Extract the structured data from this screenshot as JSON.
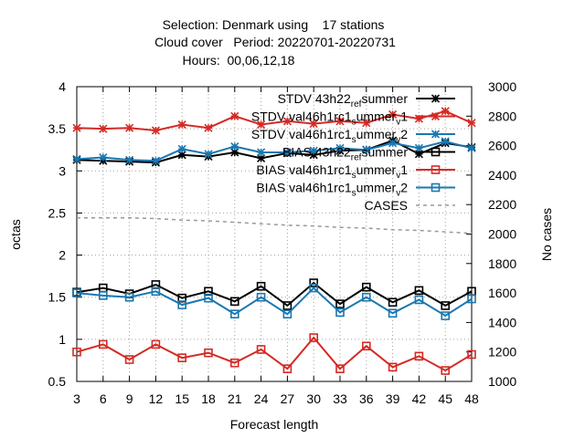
{
  "chart_data": {
    "type": "line",
    "title_lines": [
      "Selection: Denmark using    17 stations",
      "Cloud cover   Period: 20220701-20220731",
      "Hours:  00,06,12,18"
    ],
    "xlabel": "Forecast length",
    "ylabel": "octas",
    "y2label": "No cases",
    "x": [
      3,
      6,
      9,
      12,
      15,
      18,
      21,
      24,
      27,
      30,
      33,
      36,
      39,
      42,
      45,
      48
    ],
    "xlim": [
      3,
      48
    ],
    "ylim": [
      0.5,
      4
    ],
    "y2lim": [
      1000,
      3000
    ],
    "yticks": [
      "0.5",
      "1",
      "1.5",
      "2",
      "2.5",
      "3",
      "3.5",
      "4"
    ],
    "y2ticks": [
      "1000",
      "1200",
      "1400",
      "1600",
      "1800",
      "2000",
      "2200",
      "2400",
      "2600",
      "2800",
      "3000"
    ],
    "xticks": [
      "3",
      "6",
      "9",
      "12",
      "15",
      "18",
      "21",
      "24",
      "27",
      "30",
      "33",
      "36",
      "39",
      "42",
      "45",
      "48"
    ],
    "grid": true,
    "legend_position": "top-right",
    "series": [
      {
        "name": "STDV 43h22_ref_summer",
        "legend_main": "STDV 43h22",
        "legend_sub": "ref",
        "legend_main2": "s",
        "legend_tail": "ummer",
        "color": "#000000",
        "marker": "star",
        "axis": "y",
        "values": [
          3.13,
          3.12,
          3.11,
          3.1,
          3.19,
          3.17,
          3.22,
          3.15,
          3.21,
          3.19,
          3.24,
          3.25,
          3.36,
          3.2,
          3.33,
          3.28
        ]
      },
      {
        "name": "STDV val46h1rc1_summer_v1",
        "legend_main": "STDV val46h1rc1",
        "legend_sub": "s",
        "legend_tail": "ummer",
        "legend_sub2": "v",
        "legend_end": "1",
        "color": "#d42a24",
        "marker": "star",
        "axis": "y",
        "values": [
          3.51,
          3.5,
          3.51,
          3.48,
          3.55,
          3.51,
          3.65,
          3.55,
          3.59,
          3.56,
          3.59,
          3.57,
          3.67,
          3.62,
          3.71,
          3.57
        ]
      },
      {
        "name": "STDV val46h1rc1_summer_v2",
        "legend_main": "STDV val46h1rc1",
        "legend_sub": "s",
        "legend_tail": "ummer",
        "legend_sub2": "v",
        "legend_end": "2",
        "color": "#1a77b0",
        "marker": "star",
        "axis": "y",
        "values": [
          3.14,
          3.16,
          3.13,
          3.12,
          3.26,
          3.2,
          3.29,
          3.22,
          3.22,
          3.24,
          3.27,
          3.25,
          3.33,
          3.27,
          3.35,
          3.27
        ]
      },
      {
        "name": "BIAS 43h22_ref_summer",
        "legend_main": "BIAS 43h22",
        "legend_sub": "ref",
        "legend_main2": "s",
        "legend_tail": "ummer",
        "color": "#000000",
        "marker": "square",
        "axis": "y",
        "values": [
          1.56,
          1.61,
          1.54,
          1.65,
          1.49,
          1.57,
          1.45,
          1.63,
          1.4,
          1.67,
          1.42,
          1.62,
          1.44,
          1.58,
          1.4,
          1.57
        ]
      },
      {
        "name": "BIAS val46h1rc1_summer_v1",
        "legend_main": "BIAS val46h1rc1",
        "legend_sub": "s",
        "legend_tail": "ummer",
        "legend_sub2": "v",
        "legend_end": "1",
        "color": "#d42a24",
        "marker": "square",
        "axis": "y",
        "values": [
          0.85,
          0.94,
          0.76,
          0.94,
          0.78,
          0.84,
          0.72,
          0.88,
          0.65,
          1.02,
          0.65,
          0.92,
          0.67,
          0.8,
          0.63,
          0.82
        ]
      },
      {
        "name": "BIAS val46h1rc1_summer_v2",
        "legend_main": "BIAS val46h1rc1",
        "legend_sub": "s",
        "legend_tail": "ummer",
        "legend_sub2": "v",
        "legend_end": "2",
        "color": "#1a77b0",
        "marker": "square",
        "axis": "y",
        "values": [
          1.55,
          1.52,
          1.5,
          1.57,
          1.41,
          1.49,
          1.3,
          1.5,
          1.3,
          1.61,
          1.32,
          1.5,
          1.31,
          1.47,
          1.28,
          1.48
        ]
      },
      {
        "name": "CASES",
        "legend_main": "CASES",
        "color": "#999999",
        "marker": "none",
        "dashed": true,
        "axis": "y2",
        "values": [
          2110,
          2110,
          2110,
          2105,
          2095,
          2090,
          2080,
          2070,
          2060,
          2055,
          2045,
          2040,
          2030,
          2025,
          2015,
          2005
        ]
      }
    ]
  }
}
